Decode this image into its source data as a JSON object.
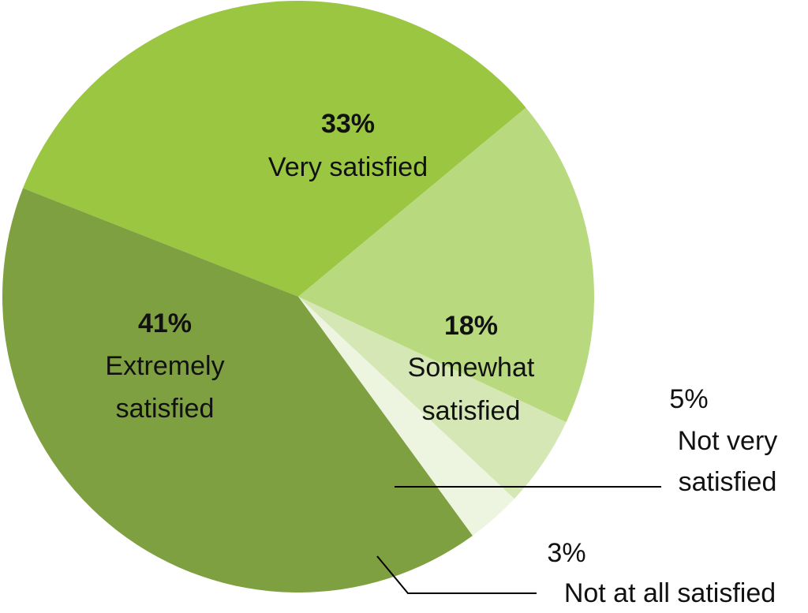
{
  "chart_data": {
    "type": "pie",
    "slices": [
      {
        "pct_label": "33%",
        "value": 33,
        "label_lines": [
          "Very satisfied"
        ],
        "color": "#9ac641"
      },
      {
        "pct_label": "18%",
        "value": 18,
        "label_lines": [
          "Somewhat",
          "satisfied"
        ],
        "color": "#b8d97d"
      },
      {
        "pct_label": "5%",
        "value": 5,
        "label_lines": [
          "Not very",
          "satisfied"
        ],
        "color": "#d4e7b4"
      },
      {
        "pct_label": "3%",
        "value": 3,
        "label_lines": [
          "Not at all satisfied"
        ],
        "color": "#edf5e1"
      },
      {
        "pct_label": "41%",
        "value": 41,
        "label_lines": [
          "Extremely",
          "satisfied"
        ],
        "color": "#7fa041"
      }
    ]
  }
}
